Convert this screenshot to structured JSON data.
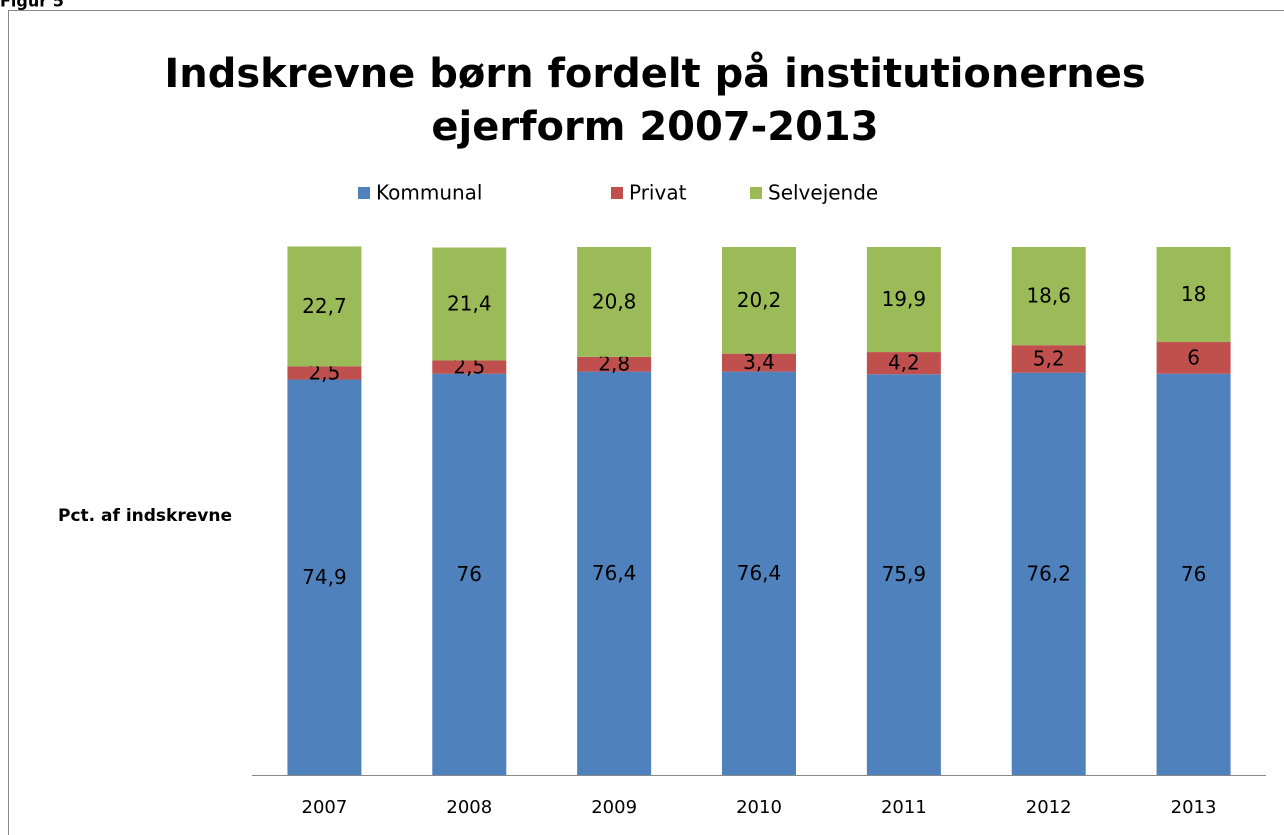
{
  "figure_label": "Figur 5",
  "chart_data": {
    "type": "stacked_bar",
    "title": [
      "Indskrevne børn fordelt på institutionernes",
      "ejerform 2007-2013"
    ],
    "y_label": "Pct. af indskrevne",
    "categories": [
      "2007",
      "2008",
      "2009",
      "2010",
      "2011",
      "2012",
      "2013"
    ],
    "series": [
      {
        "name": "Kommunal",
        "color": "#4f81bd",
        "values": [
          74.9,
          76,
          76.4,
          76.4,
          75.9,
          76.2,
          76
        ],
        "value_labels": [
          "74,9",
          "76",
          "76,4",
          "76,4",
          "75,9",
          "76,2",
          "76"
        ]
      },
      {
        "name": "Privat",
        "color": "#c0504d",
        "values": [
          2.5,
          2.5,
          2.8,
          3.4,
          4.2,
          5.2,
          6
        ],
        "value_labels": [
          "2,5",
          "2,5",
          "2,8",
          "3,4",
          "4,2",
          "5,2",
          "6"
        ]
      },
      {
        "name": "Selvejende",
        "color": "#9bbb59",
        "values": [
          22.7,
          21.4,
          20.8,
          20.2,
          19.9,
          18.6,
          18
        ],
        "value_labels": [
          "22,7",
          "21,4",
          "20,8",
          "20,2",
          "19,9",
          "18,6",
          "18"
        ]
      }
    ],
    "ylim": [
      0,
      100
    ],
    "legend": "top"
  }
}
